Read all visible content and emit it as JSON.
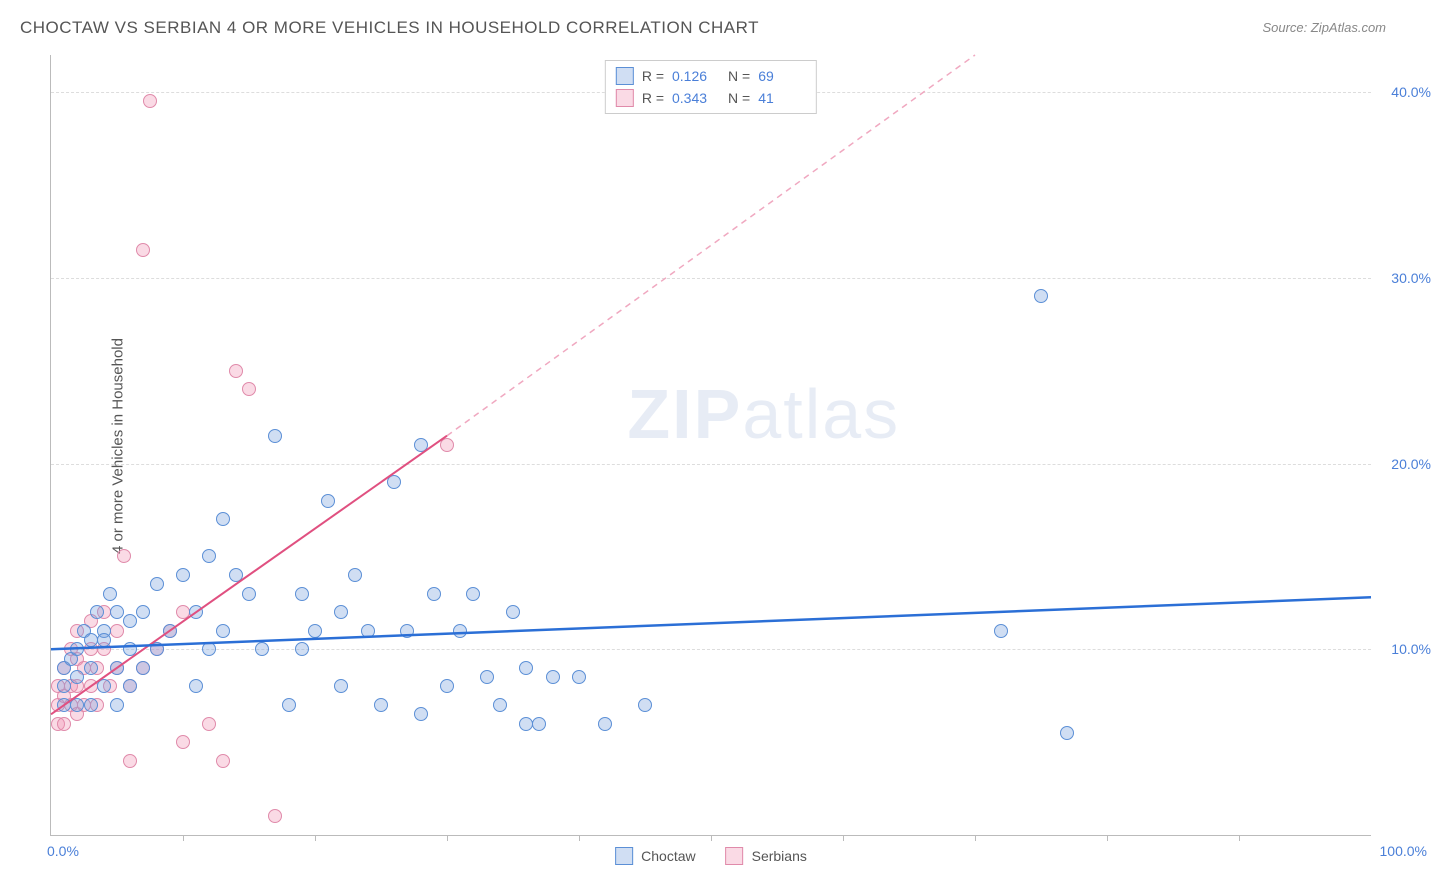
{
  "title": "CHOCTAW VS SERBIAN 4 OR MORE VEHICLES IN HOUSEHOLD CORRELATION CHART",
  "source": "Source: ZipAtlas.com",
  "ylabel": "4 or more Vehicles in Household",
  "watermark_a": "ZIP",
  "watermark_b": "atlas",
  "chart": {
    "type": "scatter",
    "xlim": [
      0,
      100
    ],
    "ylim": [
      0,
      42
    ],
    "x_ticks_minor": [
      10,
      20,
      30,
      40,
      50,
      60,
      70,
      80,
      90
    ],
    "x_tick_labels": [
      {
        "x": 0,
        "label": "0.0%"
      },
      {
        "x": 100,
        "label": "100.0%"
      }
    ],
    "y_ticks": [
      {
        "y": 10,
        "label": "10.0%"
      },
      {
        "y": 20,
        "label": "20.0%"
      },
      {
        "y": 30,
        "label": "30.0%"
      },
      {
        "y": 40,
        "label": "40.0%"
      }
    ],
    "grid_color": "#dddddd",
    "axis_color": "#bbbbbb",
    "background_color": "#ffffff",
    "label_color": "#4a7fd8",
    "title_color": "#555555",
    "series": {
      "choctaw": {
        "label": "Choctaw",
        "fill": "rgba(120,160,220,0.35)",
        "stroke": "#5b8fd6",
        "R": "0.126",
        "N": "69",
        "regression": {
          "x1": 0,
          "y1": 10.0,
          "x2": 100,
          "y2": 12.8,
          "color": "#2b6fd6",
          "width": 2.5,
          "dash": "none"
        },
        "points": [
          [
            1,
            7
          ],
          [
            1,
            8
          ],
          [
            1,
            9
          ],
          [
            1.5,
            9.5
          ],
          [
            2,
            7
          ],
          [
            2,
            8.5
          ],
          [
            2,
            10
          ],
          [
            2.5,
            11
          ],
          [
            3,
            7
          ],
          [
            3,
            9
          ],
          [
            3,
            10.5
          ],
          [
            3.5,
            12
          ],
          [
            4,
            8
          ],
          [
            4,
            11
          ],
          [
            4.5,
            13
          ],
          [
            5,
            7
          ],
          [
            5,
            12
          ],
          [
            6,
            10
          ],
          [
            6,
            11.5
          ],
          [
            7,
            9
          ],
          [
            7,
            12
          ],
          [
            8,
            10
          ],
          [
            8,
            13.5
          ],
          [
            9,
            11
          ],
          [
            10,
            14
          ],
          [
            11,
            8
          ],
          [
            11,
            12
          ],
          [
            12,
            10
          ],
          [
            12,
            15
          ],
          [
            13,
            11
          ],
          [
            14,
            14
          ],
          [
            15,
            13
          ],
          [
            16,
            10
          ],
          [
            17,
            21.5
          ],
          [
            18,
            7
          ],
          [
            19,
            13
          ],
          [
            20,
            11
          ],
          [
            21,
            18
          ],
          [
            22,
            8
          ],
          [
            22,
            12
          ],
          [
            23,
            14
          ],
          [
            24,
            11
          ],
          [
            25,
            7
          ],
          [
            26,
            19
          ],
          [
            27,
            11
          ],
          [
            28,
            6.5
          ],
          [
            28,
            21
          ],
          [
            29,
            13
          ],
          [
            30,
            8
          ],
          [
            31,
            11
          ],
          [
            32,
            13
          ],
          [
            33,
            8.5
          ],
          [
            34,
            7
          ],
          [
            35,
            12
          ],
          [
            36,
            6
          ],
          [
            36,
            9
          ],
          [
            37,
            6
          ],
          [
            38,
            8.5
          ],
          [
            40,
            8.5
          ],
          [
            42,
            6
          ],
          [
            45,
            7
          ],
          [
            72,
            11
          ],
          [
            75,
            29
          ],
          [
            77,
            5.5
          ],
          [
            4,
            10.5
          ],
          [
            5,
            9
          ],
          [
            6,
            8
          ],
          [
            13,
            17
          ],
          [
            19,
            10
          ]
        ]
      },
      "serbians": {
        "label": "Serbians",
        "fill": "rgba(240,150,180,0.35)",
        "stroke": "#e08aaa",
        "R": "0.343",
        "N": "41",
        "regression_solid": {
          "x1": 0,
          "y1": 6.5,
          "x2": 30,
          "y2": 21.5,
          "color": "#e05080",
          "width": 2,
          "dash": "none"
        },
        "regression_dash": {
          "x1": 30,
          "y1": 21.5,
          "x2": 70,
          "y2": 42,
          "color": "#f0a8c0",
          "width": 1.5,
          "dash": "6,5"
        },
        "points": [
          [
            0.5,
            6
          ],
          [
            0.5,
            7
          ],
          [
            0.5,
            8
          ],
          [
            1,
            6
          ],
          [
            1,
            7.5
          ],
          [
            1,
            9
          ],
          [
            1.5,
            7
          ],
          [
            1.5,
            8
          ],
          [
            1.5,
            10
          ],
          [
            2,
            6.5
          ],
          [
            2,
            8
          ],
          [
            2,
            9.5
          ],
          [
            2,
            11
          ],
          [
            2.5,
            7
          ],
          [
            2.5,
            9
          ],
          [
            3,
            8
          ],
          [
            3,
            10
          ],
          [
            3,
            11.5
          ],
          [
            3.5,
            7
          ],
          [
            3.5,
            9
          ],
          [
            4,
            10
          ],
          [
            4,
            12
          ],
          [
            4.5,
            8
          ],
          [
            5,
            9
          ],
          [
            5,
            11
          ],
          [
            5.5,
            15
          ],
          [
            6,
            4
          ],
          [
            6,
            8
          ],
          [
            7,
            9
          ],
          [
            7,
            31.5
          ],
          [
            7.5,
            39.5
          ],
          [
            8,
            10
          ],
          [
            9,
            11
          ],
          [
            10,
            5
          ],
          [
            10,
            12
          ],
          [
            12,
            6
          ],
          [
            13,
            4
          ],
          [
            14,
            25
          ],
          [
            15,
            24
          ],
          [
            17,
            1
          ],
          [
            30,
            21
          ]
        ]
      }
    }
  }
}
